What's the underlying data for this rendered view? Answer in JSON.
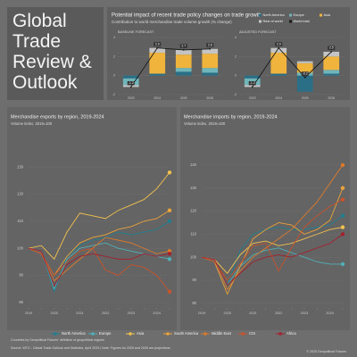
{
  "header": {
    "title": "Global Trade Review & Outlook"
  },
  "impact": {
    "title": "Potential impact of recent trade policy changes on trade growth",
    "subtitle": "Contribution to world merchandise trade volume growth (% change)"
  },
  "chart_data": [
    {
      "type": "bar",
      "title": "BASELINE FORECAST",
      "categories": [
        "2023",
        "2024",
        "2025",
        "2026"
      ],
      "series": [
        {
          "name": "North America",
          "color": "#2b6f86",
          "values": [
            -0.3,
            0.2,
            0.4,
            0.3
          ]
        },
        {
          "name": "Europe",
          "color": "#6fb5b9",
          "values": [
            -0.7,
            0.0,
            0.4,
            0.5
          ]
        },
        {
          "name": "Asia",
          "color": "#f0b43c",
          "values": [
            0.0,
            2.2,
            1.4,
            1.5
          ]
        },
        {
          "name": "Rest of world",
          "color": "#c4c4c4",
          "values": [
            -0.2,
            0.5,
            0.5,
            0.5
          ]
        }
      ],
      "total": {
        "name": "World total",
        "color": "#1a1a1a",
        "values": [
          -1.2,
          2.9,
          2.7,
          2.8
        ]
      },
      "ylim": [
        -2,
        4
      ],
      "yticks": [
        -2,
        0,
        2,
        4
      ]
    },
    {
      "type": "bar",
      "title": "ADJUSTED FORECAST",
      "categories": [
        "2023",
        "2024",
        "2025",
        "2026"
      ],
      "series": [
        {
          "color": "#2b6f86",
          "values": [
            -0.3,
            0.2,
            -1.7,
            0.2
          ]
        },
        {
          "color": "#6fb5b9",
          "values": [
            -0.7,
            0.0,
            0.3,
            0.4
          ]
        },
        {
          "color": "#f0b43c",
          "values": [
            0.0,
            2.2,
            1.0,
            1.4
          ]
        },
        {
          "color": "#c4c4c4",
          "values": [
            -0.2,
            0.5,
            0.2,
            0.5
          ]
        }
      ],
      "total": {
        "color": "#1a1a1a",
        "values": [
          -1.2,
          2.9,
          -0.2,
          2.5
        ]
      },
      "ylim": [
        -2,
        4
      ],
      "yticks": [
        -2,
        0,
        2,
        4
      ]
    },
    {
      "type": "line",
      "title": "Merchandise exports by region, 2019-2024",
      "subtitle": "Volume index, 2019=100",
      "categories": [
        "2019",
        null,
        "2020",
        null,
        "2021",
        null,
        "2022",
        null,
        "2023",
        null,
        "2024",
        null
      ],
      "series": [
        {
          "name": "North America",
          "color": "#1f7f8f",
          "values": [
            100,
            99,
            84,
            97,
            101,
            103,
            104,
            106,
            105,
            106,
            107,
            110
          ]
        },
        {
          "name": "Europe",
          "color": "#4fb0b8",
          "values": [
            100,
            99,
            85,
            96,
            100,
            101,
            102,
            100,
            99,
            98,
            97,
            96
          ]
        },
        {
          "name": "Asia",
          "color": "#f2c14e",
          "values": [
            100,
            101,
            96,
            106,
            113,
            112,
            111,
            114,
            116,
            118,
            122,
            128
          ]
        },
        {
          "name": "South America",
          "color": "#eaa23a",
          "values": [
            100,
            98,
            90,
            97,
            102,
            104,
            105,
            107,
            108,
            110,
            111,
            114
          ]
        },
        {
          "name": "Middle East",
          "color": "#db7a2b",
          "values": [
            100,
            98,
            88,
            92,
            96,
            100,
            104,
            103,
            102,
            100,
            98,
            99
          ]
        },
        {
          "name": "CIS",
          "color": "#c9532a",
          "values": [
            100,
            98,
            90,
            95,
            99,
            100,
            92,
            90,
            94,
            93,
            90,
            84
          ]
        },
        {
          "name": "Africa",
          "color": "#a3202f",
          "values": [
            100,
            99,
            86,
            94,
            97,
            98,
            97,
            96,
            96,
            98,
            97,
            98
          ]
        }
      ],
      "ylim": [
        78,
        135
      ],
      "yticks": [
        80,
        90,
        100,
        110,
        120,
        130
      ],
      "grid": true
    },
    {
      "type": "line",
      "title": "Merchandise imports by region, 2019-2024",
      "subtitle": "Volume index, 2019=100",
      "categories": [
        "2019",
        null,
        "2020",
        null,
        "2021",
        null,
        "2022",
        null,
        "2023",
        null,
        "2024",
        null
      ],
      "series": [
        {
          "color": "#1f7f8f",
          "values": [
            100,
            98,
            88,
            103,
            110,
            112,
            113,
            112,
            112,
            113,
            114,
            118
          ]
        },
        {
          "color": "#4fb0b8",
          "values": [
            100,
            99,
            88,
            96,
            101,
            103,
            104,
            102,
            100,
            98,
            97,
            97
          ]
        },
        {
          "color": "#f2c14e",
          "values": [
            100,
            99,
            93,
            101,
            106,
            107,
            105,
            106,
            108,
            110,
            112,
            113
          ]
        },
        {
          "color": "#eaa23a",
          "values": [
            100,
            98,
            84,
            96,
            108,
            112,
            115,
            114,
            110,
            112,
            116,
            130
          ]
        },
        {
          "color": "#db7a2b",
          "values": [
            100,
            99,
            86,
            94,
            100,
            104,
            108,
            112,
            118,
            124,
            132,
            140
          ]
        },
        {
          "color": "#c9532a",
          "values": [
            100,
            98,
            90,
            97,
            105,
            106,
            94,
            104,
            113,
            118,
            122,
            125
          ]
        },
        {
          "color": "#a3202f",
          "values": [
            100,
            99,
            88,
            93,
            98,
            100,
            101,
            100,
            102,
            104,
            106,
            110
          ]
        }
      ],
      "ylim": [
        78,
        145
      ],
      "yticks": [
        80,
        90,
        100,
        110,
        120,
        130,
        140
      ],
      "grid": true
    }
  ],
  "footer": {
    "note": "Countries by Geopolitical Futures' definition of geopolitical regions",
    "source": "Source: WTO - Global Trade Outlook and Statistics, April 2025 | Note: Figures for 2025 and 2026 are projections.",
    "copyright": "© 2025 Geopolitical Futures"
  }
}
